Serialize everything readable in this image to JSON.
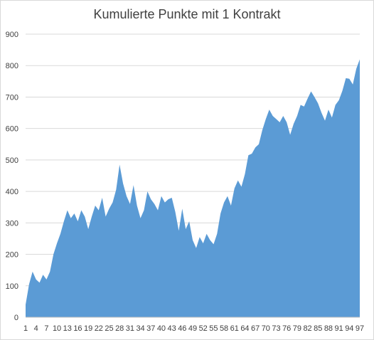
{
  "chart_data": {
    "type": "area",
    "title": "Kumulierte Punkte mit 1 Kontrakt",
    "xlabel": "",
    "ylabel": "",
    "ylim": [
      0,
      900
    ],
    "yticks": [
      0,
      100,
      200,
      300,
      400,
      500,
      600,
      700,
      800,
      900
    ],
    "xticks": [
      1,
      4,
      7,
      10,
      13,
      16,
      19,
      22,
      25,
      28,
      31,
      34,
      37,
      40,
      43,
      46,
      49,
      52,
      55,
      58,
      61,
      64,
      67,
      70,
      73,
      76,
      79,
      82,
      85,
      88,
      91,
      94,
      97
    ],
    "grid": "horizontal",
    "legend": "none",
    "fill_color": "#5b9bd5",
    "x": [
      1,
      2,
      3,
      4,
      5,
      6,
      7,
      8,
      9,
      10,
      11,
      12,
      13,
      14,
      15,
      16,
      17,
      18,
      19,
      20,
      21,
      22,
      23,
      24,
      25,
      26,
      27,
      28,
      29,
      30,
      31,
      32,
      33,
      34,
      35,
      36,
      37,
      38,
      39,
      40,
      41,
      42,
      43,
      44,
      45,
      46,
      47,
      48,
      49,
      50,
      51,
      52,
      53,
      54,
      55,
      56,
      57,
      58,
      59,
      60,
      61,
      62,
      63,
      64,
      65,
      66,
      67,
      68,
      69,
      70,
      71,
      72,
      73,
      74,
      75,
      76,
      77,
      78,
      79,
      80,
      81,
      82,
      83,
      84,
      85,
      86,
      87,
      88,
      89,
      90,
      91,
      92,
      93,
      94,
      95,
      96,
      97
    ],
    "values": [
      40,
      105,
      145,
      120,
      110,
      135,
      120,
      145,
      200,
      235,
      265,
      305,
      340,
      315,
      330,
      305,
      340,
      320,
      280,
      320,
      355,
      340,
      380,
      320,
      345,
      365,
      405,
      485,
      425,
      385,
      360,
      420,
      355,
      315,
      340,
      400,
      375,
      360,
      340,
      385,
      365,
      375,
      380,
      335,
      275,
      345,
      280,
      305,
      245,
      220,
      255,
      235,
      265,
      245,
      232,
      265,
      330,
      365,
      385,
      355,
      410,
      435,
      415,
      455,
      515,
      520,
      540,
      550,
      595,
      630,
      660,
      640,
      630,
      620,
      640,
      620,
      580,
      615,
      640,
      675,
      670,
      695,
      718,
      700,
      680,
      650,
      625,
      660,
      635,
      675,
      690,
      720,
      760,
      758,
      740,
      790,
      820
    ]
  }
}
